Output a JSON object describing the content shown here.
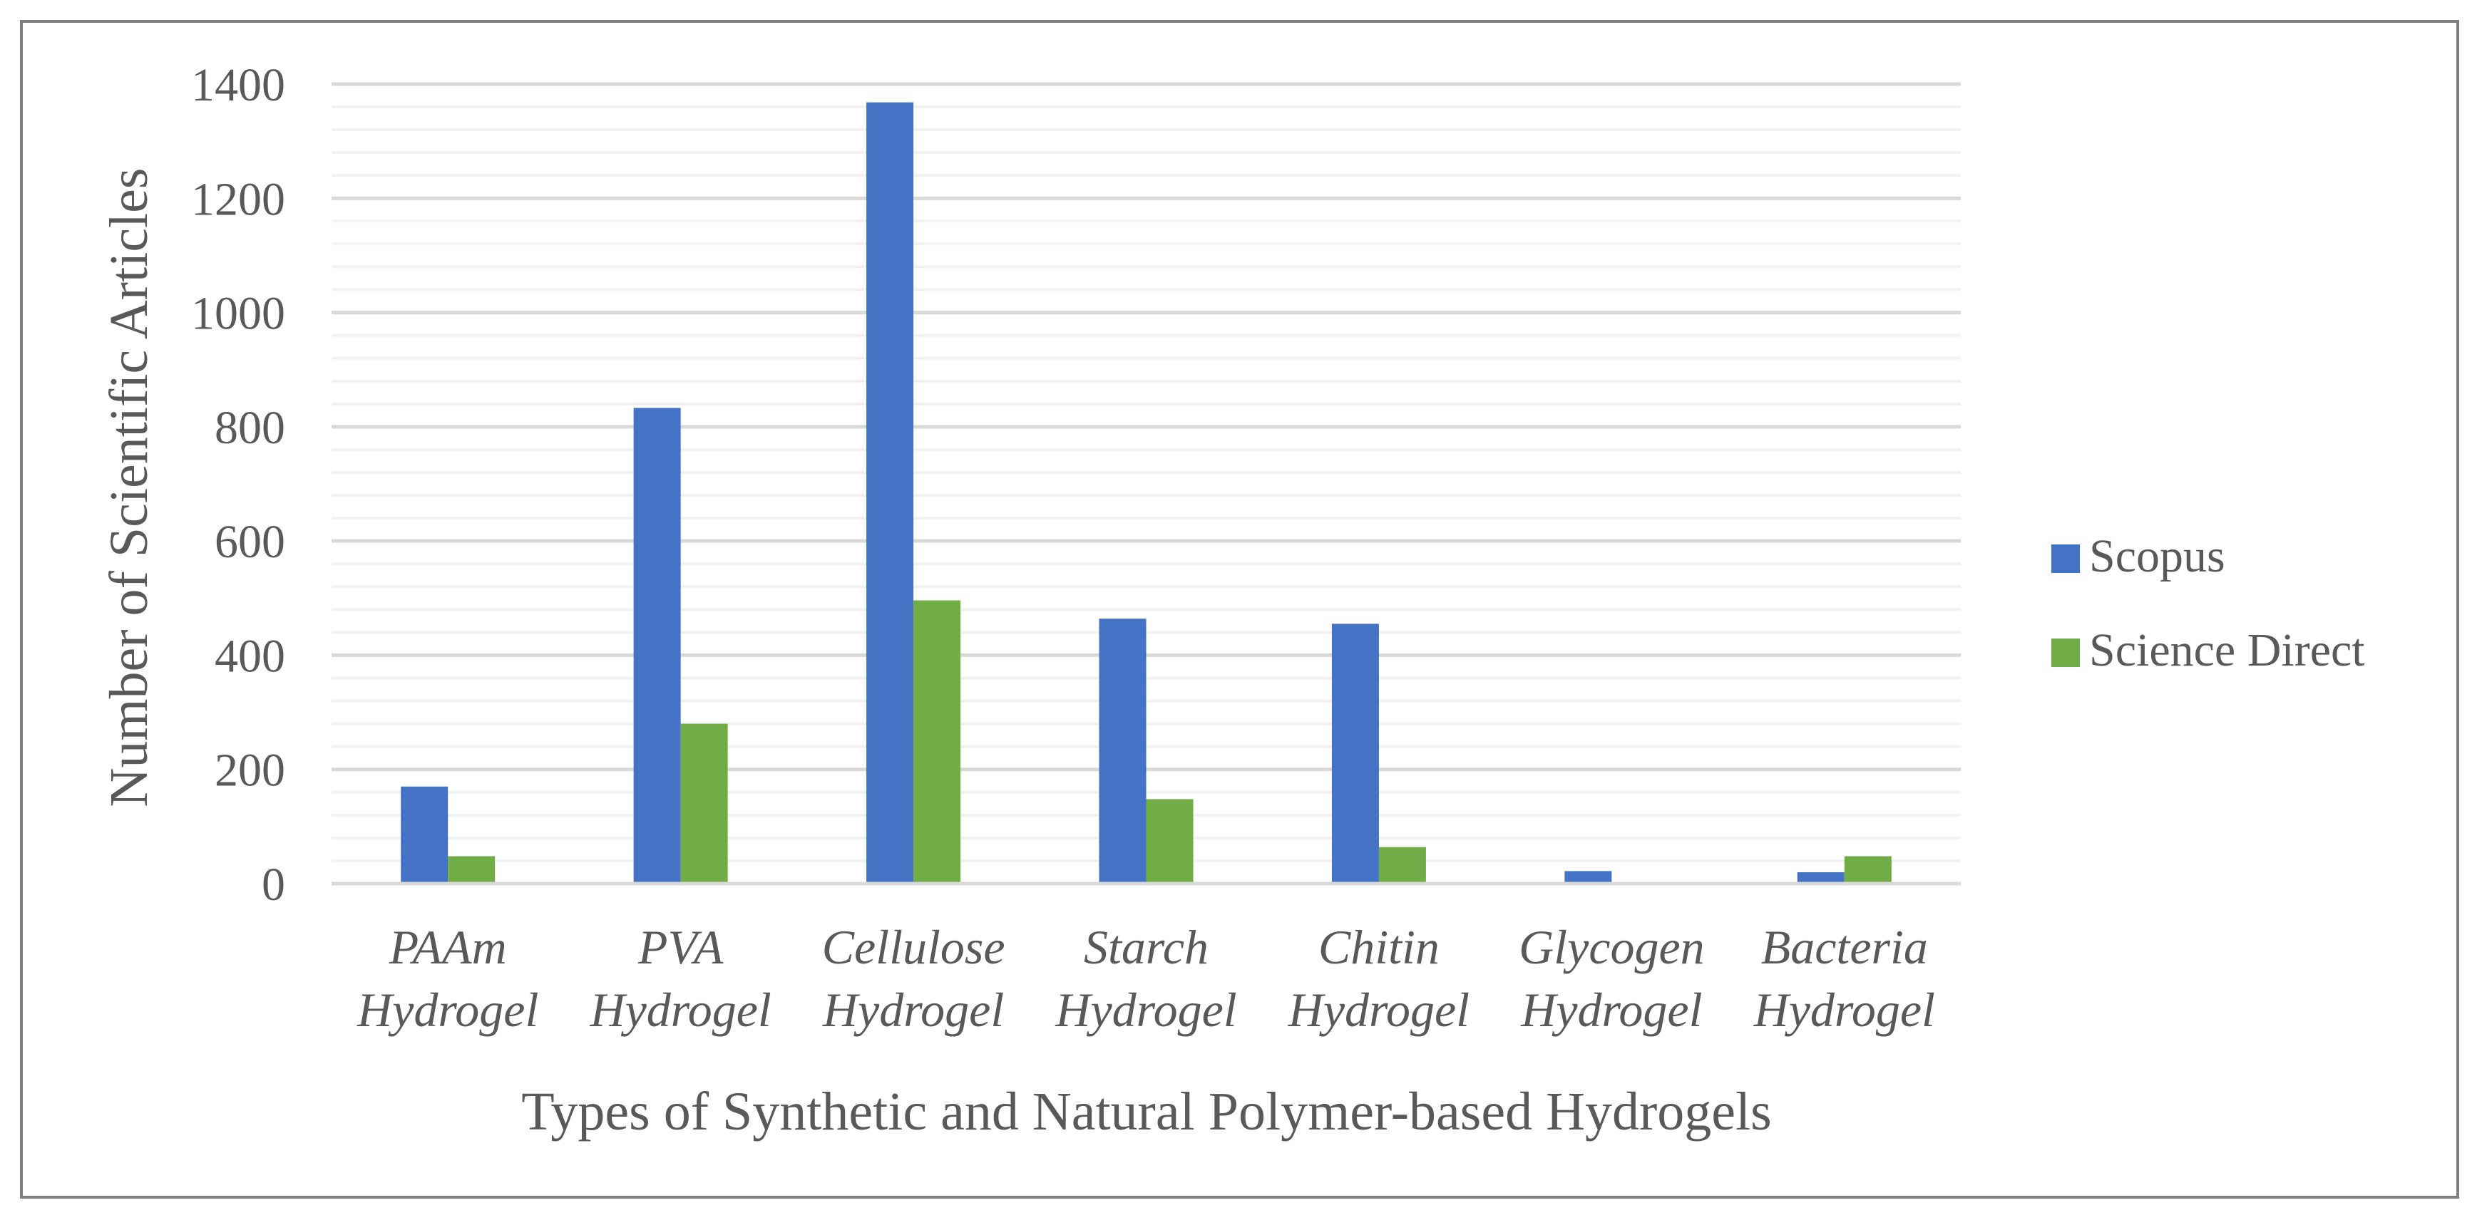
{
  "chart_data": {
    "type": "bar",
    "title": "",
    "xlabel": "Types of Synthetic and Natural Polymer-based Hydrogels",
    "ylabel": "Number of  Scientific Articles",
    "ylim": [
      0,
      1400
    ],
    "yticks": [
      0,
      200,
      400,
      600,
      800,
      1000,
      1200,
      1400
    ],
    "minor_gridlines": true,
    "legend_position": "right",
    "categories": [
      [
        "PAAm",
        "Hydrogel"
      ],
      [
        "PVA",
        "Hydrogel"
      ],
      [
        "Cellulose",
        "Hydrogel"
      ],
      [
        "Starch",
        "Hydrogel"
      ],
      [
        "Chitin",
        "Hydrogel"
      ],
      [
        "Glycogen",
        "Hydrogel"
      ],
      [
        "Bacteria",
        "Hydrogel"
      ]
    ],
    "series": [
      {
        "name": "Scopus",
        "color": "#4472c4",
        "values": [
          170,
          833,
          1368,
          464,
          455,
          22,
          20
        ]
      },
      {
        "name": "Science Direct",
        "color": "#70ad47",
        "values": [
          48,
          280,
          496,
          148,
          64,
          0,
          48
        ]
      }
    ]
  }
}
